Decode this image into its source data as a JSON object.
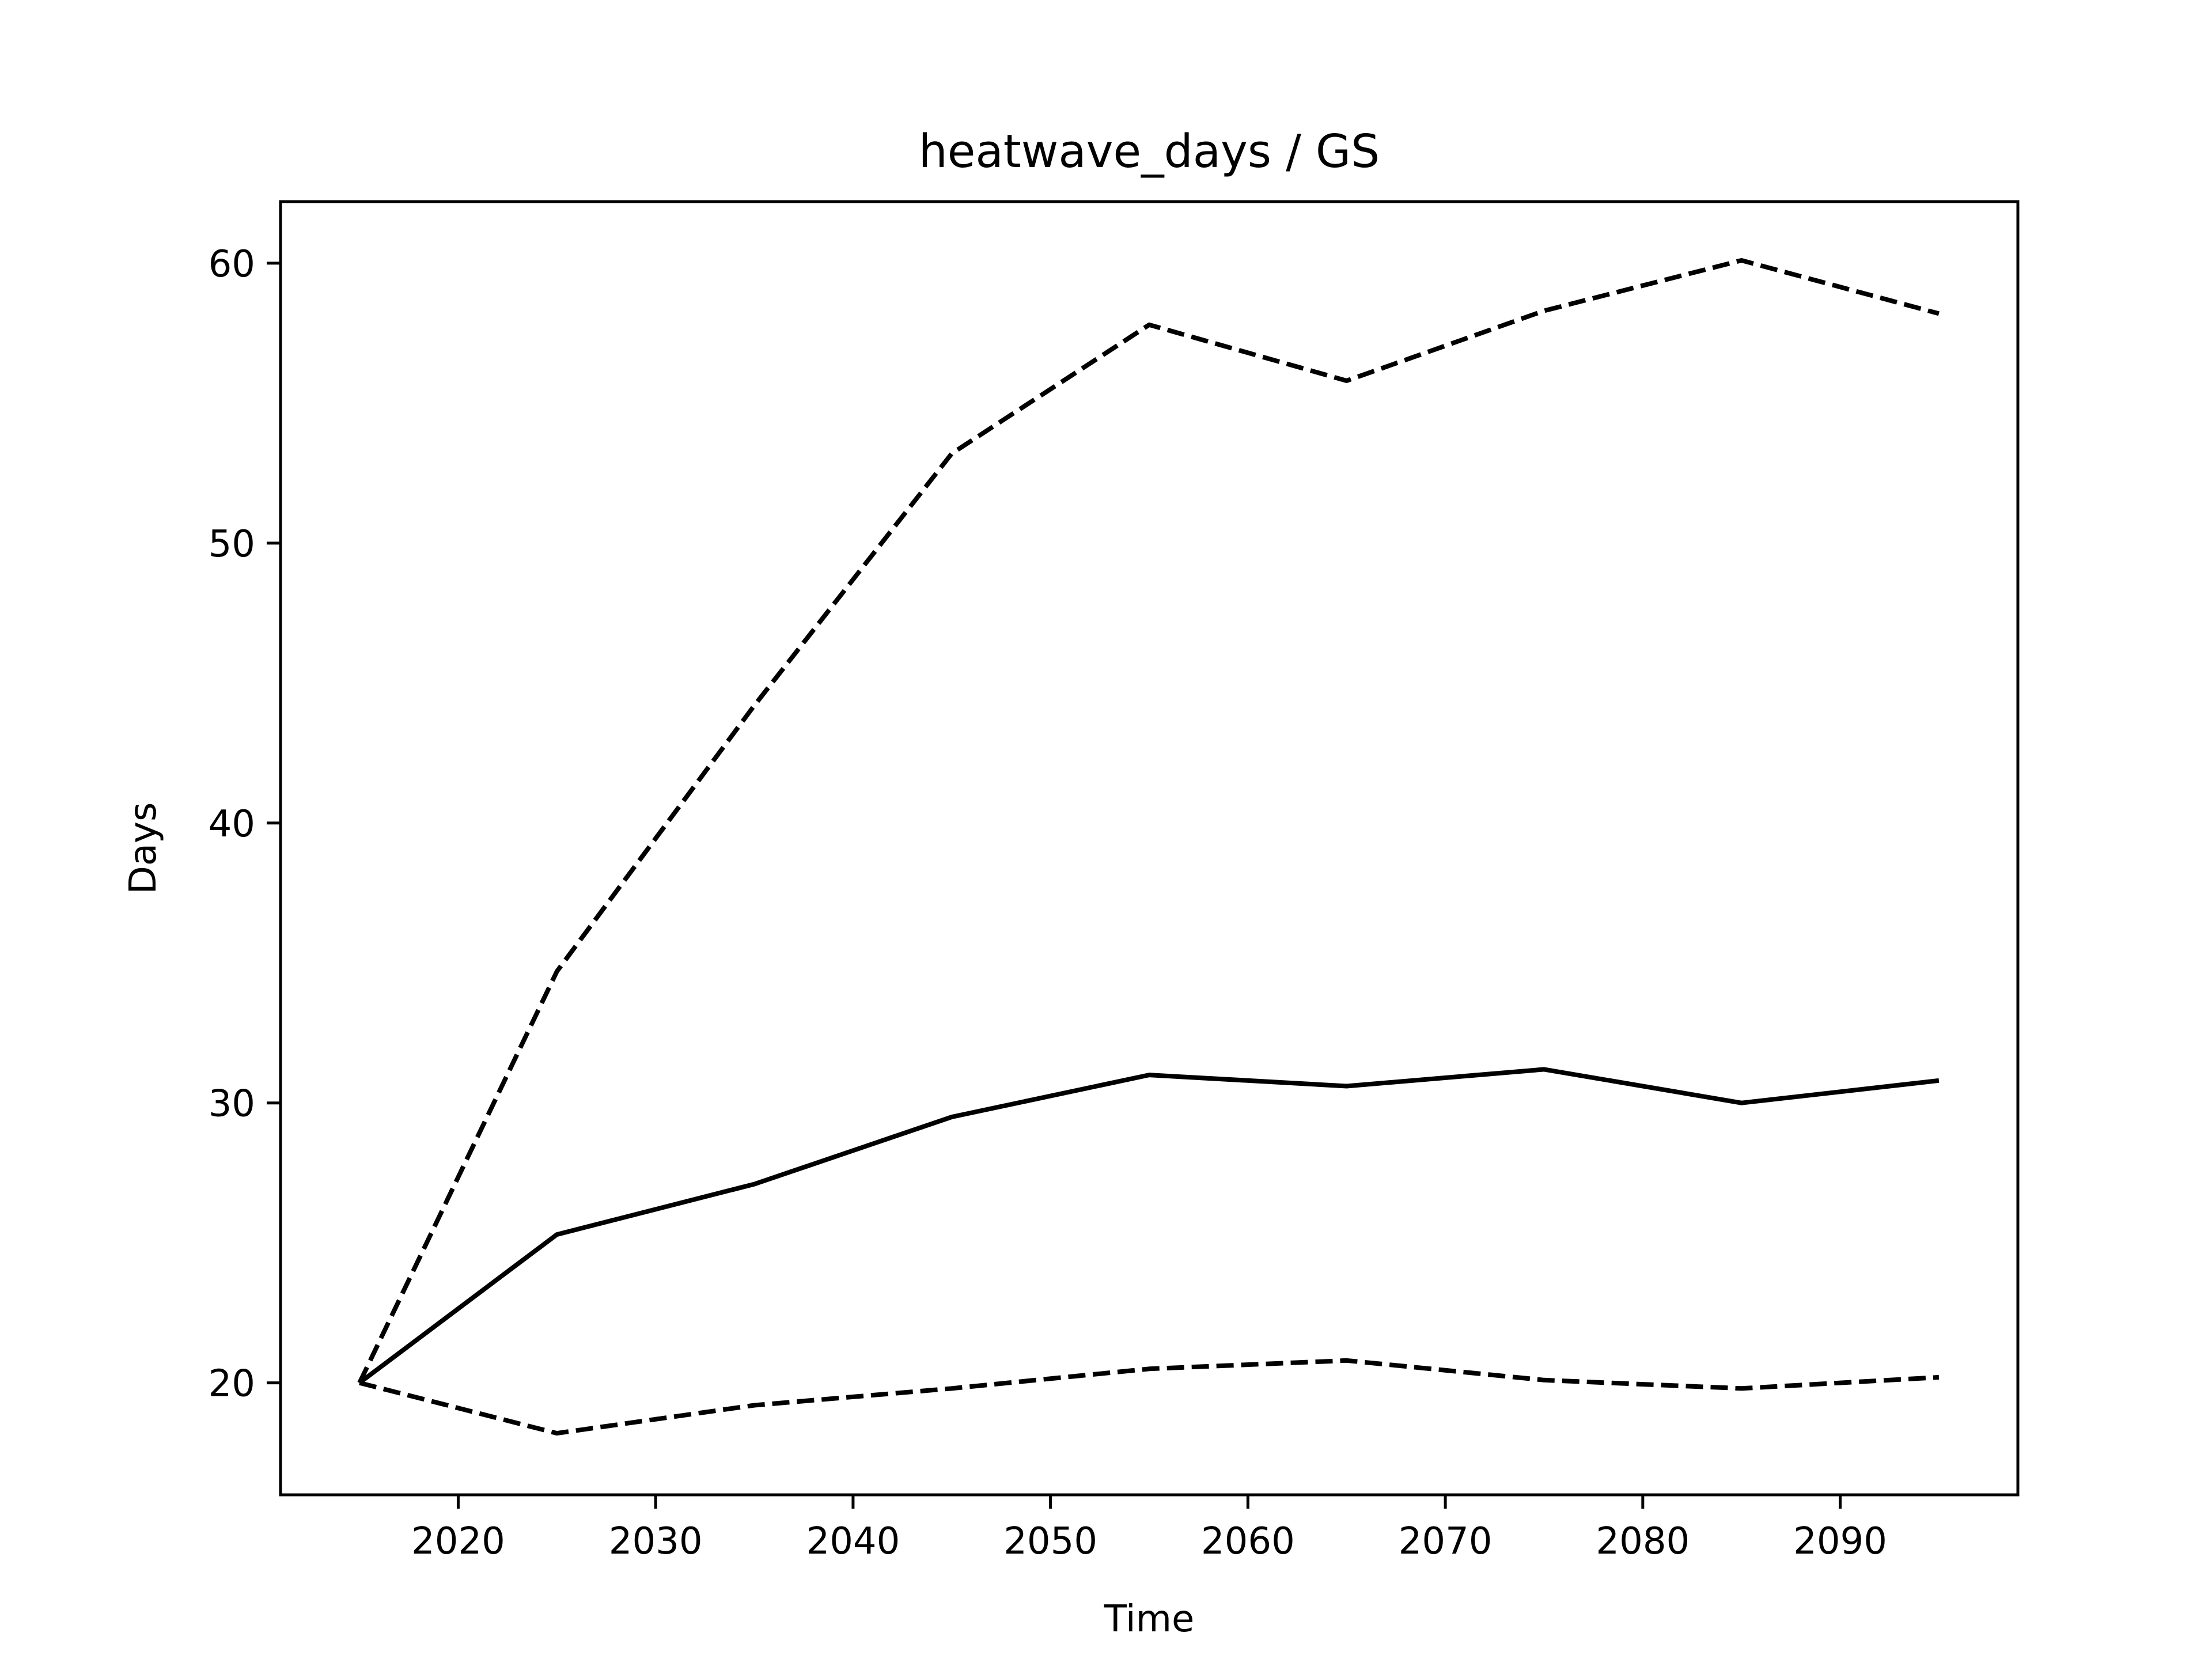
{
  "chart_data": {
    "type": "line",
    "title": "heatwave_days / GS",
    "xlabel": "Time",
    "ylabel": "Days",
    "x": [
      2015,
      2025,
      2035,
      2045,
      2055,
      2065,
      2075,
      2085,
      2095
    ],
    "xlim": [
      2011,
      2099
    ],
    "ylim": [
      16,
      62.2
    ],
    "xticks": [
      2020,
      2030,
      2040,
      2050,
      2060,
      2070,
      2080,
      2090
    ],
    "yticks": [
      20,
      30,
      40,
      50,
      60
    ],
    "grid": false,
    "legend": "none",
    "series": [
      {
        "style": "solid",
        "color": "#000000",
        "values": [
          20,
          25.3,
          27.1,
          29.5,
          31.0,
          30.6,
          31.2,
          30.0,
          30.8
        ]
      },
      {
        "style": "dashed",
        "color": "#000000",
        "values": [
          20,
          34.7,
          44.2,
          53.2,
          57.8,
          55.8,
          58.3,
          60.1,
          58.2
        ]
      },
      {
        "style": "dashed",
        "color": "#000000",
        "values": [
          20,
          18.2,
          19.2,
          19.8,
          20.5,
          20.8,
          20.1,
          19.8,
          20.2
        ]
      }
    ]
  }
}
